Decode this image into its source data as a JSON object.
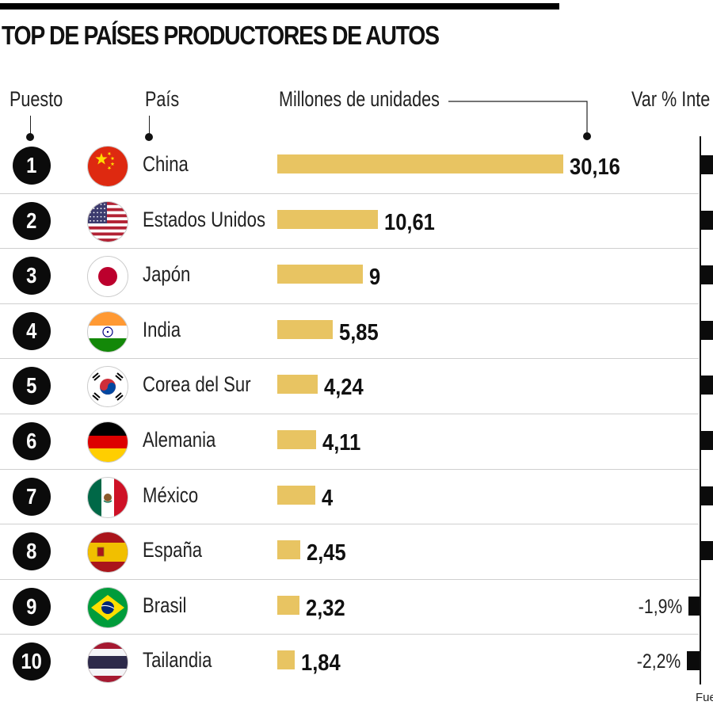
{
  "title": "TOP DE PAÍSES PRODUCTORES DE AUTOS",
  "headers": {
    "rank": "Puesto",
    "country": "País",
    "units": "Millones de unidades",
    "variation": "Var % Inte"
  },
  "source_label": "Fue",
  "colors": {
    "bar": "#e8c462",
    "variation_bar": "#0b0b0b",
    "rank_circle": "#0b0b0b"
  },
  "chart_data": {
    "type": "bar",
    "title": "TOP DE PAÍSES PRODUCTORES DE AUTOS",
    "xlabel": "Millones de unidades",
    "ylabel": "",
    "categories": [
      "China",
      "Estados Unidos",
      "Japón",
      "India",
      "Corea del Sur",
      "Alemania",
      "México",
      "España",
      "Brasil",
      "Tailandia"
    ],
    "ranks": [
      "1",
      "2",
      "3",
      "4",
      "5",
      "6",
      "7",
      "8",
      "9",
      "10"
    ],
    "values": [
      30.16,
      10.61,
      9,
      5.85,
      4.24,
      4.11,
      4,
      2.45,
      2.32,
      1.84
    ],
    "value_labels": [
      "30,16",
      "10,61",
      "9",
      "5,85",
      "4,24",
      "4,11",
      "4",
      "2,45",
      "2,32",
      "1,84"
    ],
    "variation_labels": [
      "",
      "",
      "",
      "",
      "",
      "",
      "",
      "",
      "-1,9%",
      "-2,2%"
    ],
    "variation_values": [
      null,
      null,
      null,
      null,
      null,
      null,
      null,
      null,
      -1.9,
      -2.2
    ],
    "flag_icons": [
      "flag-china-icon",
      "flag-usa-icon",
      "flag-japan-icon",
      "flag-india-icon",
      "flag-south-korea-icon",
      "flag-germany-icon",
      "flag-mexico-icon",
      "flag-spain-icon",
      "flag-brazil-icon",
      "flag-thailand-icon"
    ],
    "xlim": [
      0,
      30.16
    ],
    "grid": false
  }
}
